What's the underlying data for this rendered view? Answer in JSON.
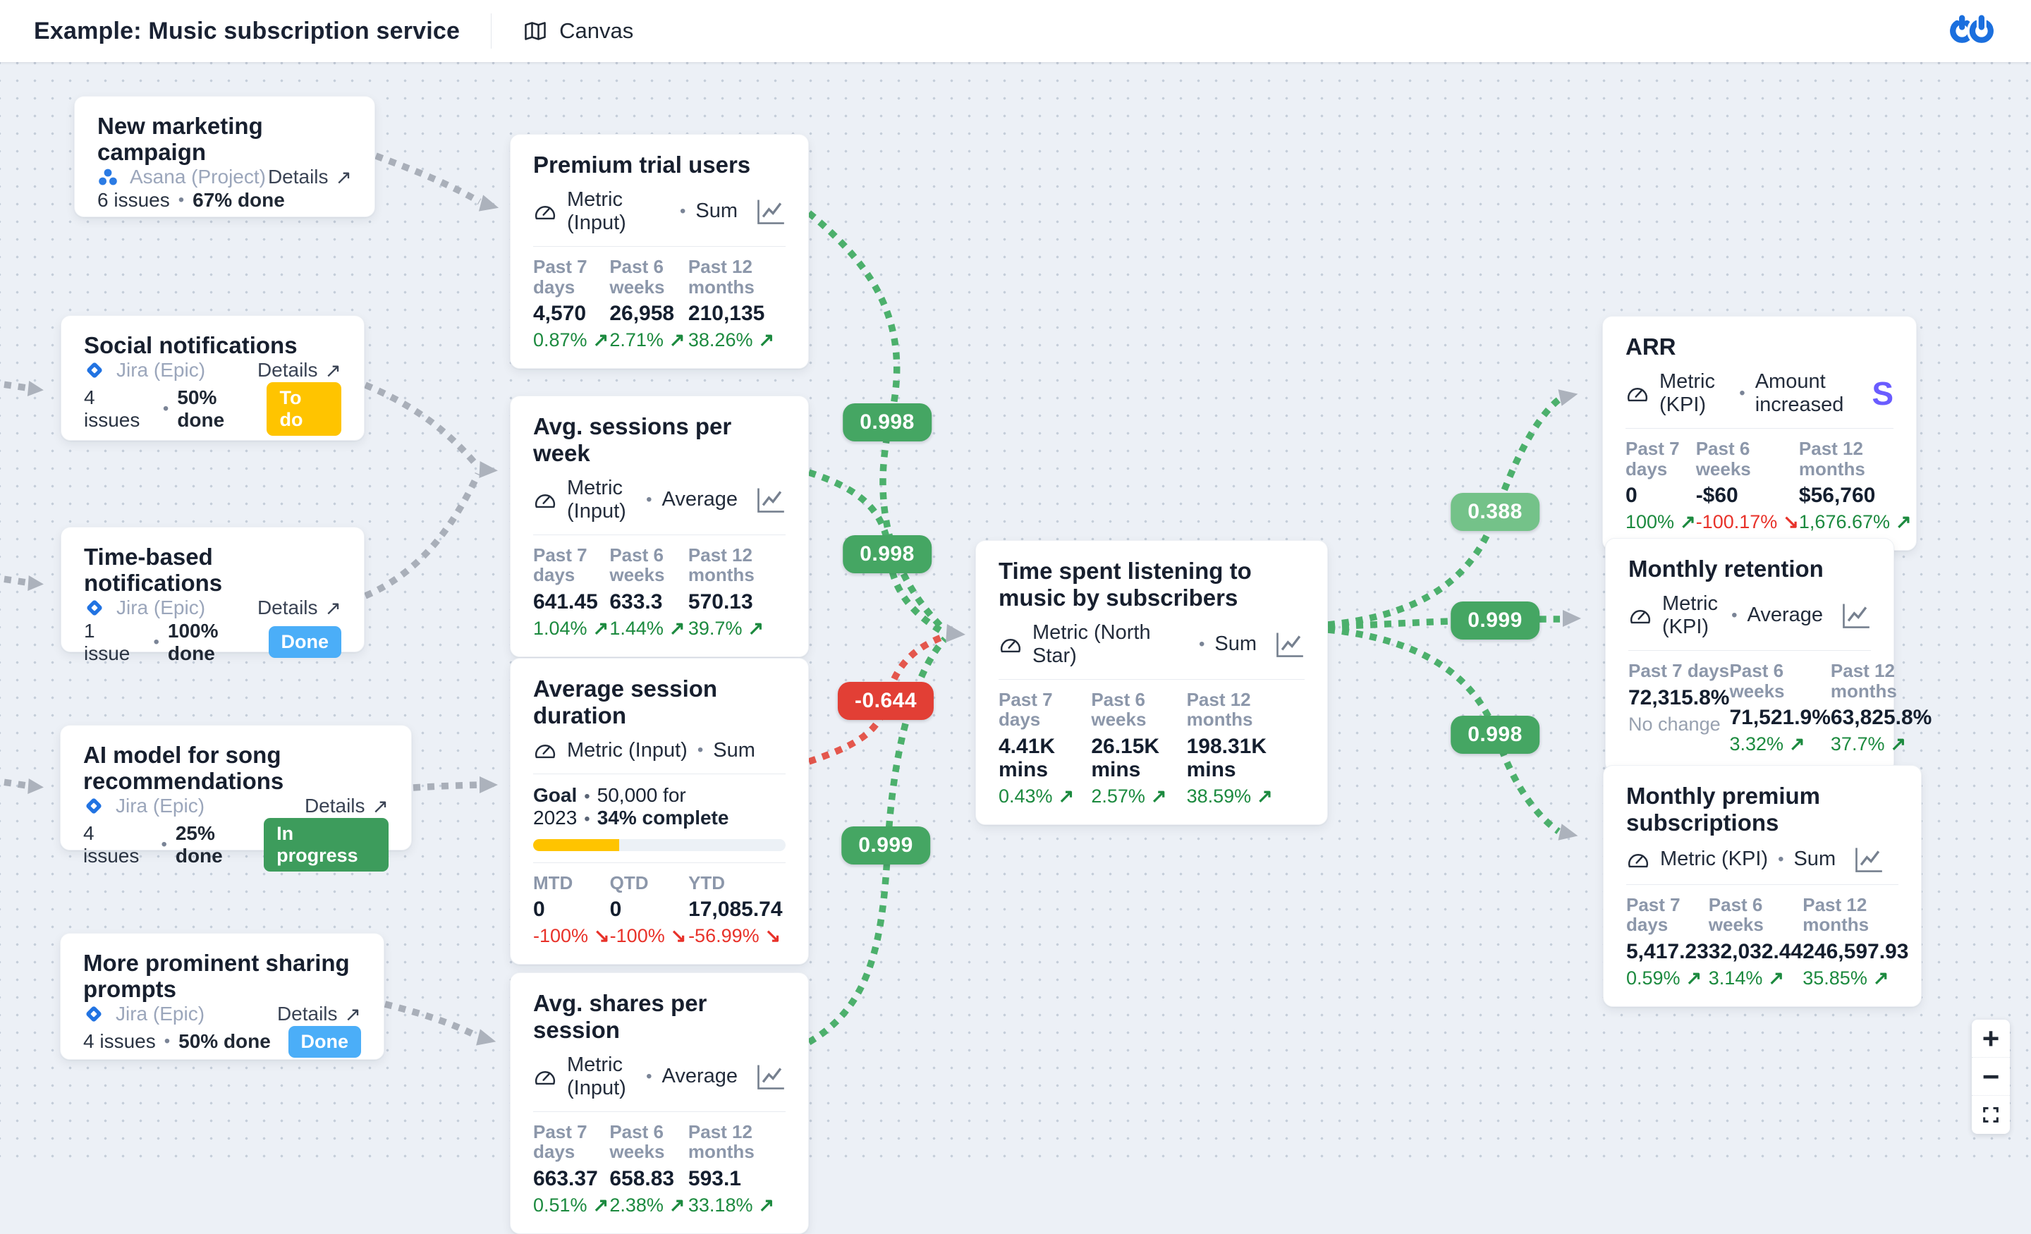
{
  "header": {
    "title": "Example: Music subscription service",
    "nav_label": "Canvas"
  },
  "icons": {
    "bullet": "•",
    "details_arrow": "↗",
    "trend_up": "↗",
    "trend_down": "↘",
    "plus": "+",
    "minus": "−"
  },
  "colors": {
    "green": "#45A663",
    "light_green": "#74C289",
    "red": "#E23F35",
    "yellow": "#FFC400",
    "blue": "#4BAEF8",
    "dark_green": "#3D9C5C",
    "gray_edge": "#A9AFB9",
    "accent_blue": "#1B6FDE",
    "stripe": "#6A5CFF"
  },
  "work_cards": [
    {
      "title": "New marketing campaign",
      "source": "Asana (Project)",
      "details": "Details",
      "issues": "6 issues",
      "done": "67% done",
      "progress": [
        {
          "color": "#FFC400",
          "pct": 67
        },
        {
          "color": "#EEF1F5",
          "pct": 33
        }
      ]
    },
    {
      "title": "Social notifications",
      "source": "Jira (Epic)",
      "details": "Details",
      "issues": "4 issues",
      "done": "50% done",
      "badge": {
        "label": "To do",
        "color": "#FFC400"
      },
      "progress": [
        {
          "color": "#FFC400",
          "pct": 50
        },
        {
          "color": "#FFE6A1",
          "pct": 25
        },
        {
          "color": "#C9D2DC",
          "pct": 25
        }
      ]
    },
    {
      "title": "Time-based notifications",
      "source": "Jira (Epic)",
      "details": "Details",
      "issues": "1 issue",
      "done": "100% done",
      "badge": {
        "label": "Done",
        "color": "#4BAEF8"
      },
      "progress": [
        {
          "color": "#4BAEF8",
          "pct": 100
        }
      ]
    },
    {
      "title": "AI model for song recommendations",
      "source": "Jira (Epic)",
      "details": "Details",
      "issues": "4 issues",
      "done": "25% done",
      "badge": {
        "label": "In progress",
        "color": "#3D9C5C"
      },
      "progress": [
        {
          "color": "#3D9C5C",
          "pct": 25
        },
        {
          "color": "#97D6AC",
          "pct": 25
        },
        {
          "color": "#C9D2DC",
          "pct": 50
        }
      ]
    },
    {
      "title": "More prominent sharing prompts",
      "source": "Jira (Epic)",
      "details": "Details",
      "issues": "4 issues",
      "done": "50% done",
      "badge": {
        "label": "Done",
        "color": "#4BAEF8"
      },
      "progress": [
        {
          "color": "#4BAEF8",
          "pct": 50
        },
        {
          "color": "#C9D2DC",
          "pct": 50
        }
      ]
    }
  ],
  "metric_cards": [
    {
      "title": "Premium trial users",
      "type": "Metric (Input)",
      "agg": "Sum",
      "stats": [
        {
          "label": "Past 7 days",
          "value": "4,570",
          "change": "0.87%"
        },
        {
          "label": "Past 6 weeks",
          "value": "26,958",
          "change": "2.71%"
        },
        {
          "label": "Past 12 months",
          "value": "210,135",
          "change": "38.26%"
        }
      ]
    },
    {
      "title": "Avg. sessions per week",
      "type": "Metric (Input)",
      "agg": "Average",
      "stats": [
        {
          "label": "Past 7 days",
          "value": "641.45",
          "change": "1.04%"
        },
        {
          "label": "Past 6 weeks",
          "value": "633.3",
          "change": "1.44%"
        },
        {
          "label": "Past 12 months",
          "value": "570.13",
          "change": "39.7%"
        }
      ]
    },
    {
      "title": "Average session duration",
      "type": "Metric (Input)",
      "agg": "Sum",
      "goal": {
        "label": "Goal",
        "target": "50,000 for 2023",
        "complete": "34% complete",
        "progress": [
          {
            "color": "#FFC400",
            "pct": 34
          },
          {
            "color": "#ECF1F6",
            "pct": 66
          }
        ]
      },
      "stats": [
        {
          "label": "MTD",
          "value": "0",
          "change": "-100%"
        },
        {
          "label": "QTD",
          "value": "0",
          "change": "-100%"
        },
        {
          "label": "YTD",
          "value": "17,085.74",
          "change": "-56.99%"
        }
      ]
    },
    {
      "title": "Avg. shares per session",
      "type": "Metric (Input)",
      "agg": "Average",
      "stats": [
        {
          "label": "Past 7 days",
          "value": "663.37",
          "change": "0.51%"
        },
        {
          "label": "Past 6 weeks",
          "value": "658.83",
          "change": "2.38%"
        },
        {
          "label": "Past 12 months",
          "value": "593.1",
          "change": "33.18%"
        }
      ]
    }
  ],
  "north_star": {
    "title": "Time spent listening to music by subscribers",
    "type": "Metric (North Star)",
    "agg": "Sum",
    "stats": [
      {
        "label": "Past 7 days",
        "value": "4.41K mins",
        "change": "0.43%"
      },
      {
        "label": "Past 6 weeks",
        "value": "26.15K mins",
        "change": "2.57%"
      },
      {
        "label": "Past 12 months",
        "value": "198.31K mins",
        "change": "38.59%"
      }
    ]
  },
  "kpi_cards": [
    {
      "title": "ARR",
      "type": "Metric (KPI)",
      "agg": "Amount increased",
      "logo": "S",
      "stats": [
        {
          "label": "Past 7 days",
          "value": "0",
          "change": "100%"
        },
        {
          "label": "Past 6 weeks",
          "value": "-$60",
          "change": "-100.17%"
        },
        {
          "label": "Past 12 months",
          "value": "$56,760",
          "change": "1,676.67%"
        }
      ]
    },
    {
      "title": "Monthly retention",
      "type": "Metric (KPI)",
      "agg": "Average",
      "stats": [
        {
          "label": "Past 7 days",
          "value": "72,315.8%",
          "change": "No change"
        },
        {
          "label": "Past 6 weeks",
          "value": "71,521.9%",
          "change": "3.32%"
        },
        {
          "label": "Past 12 months",
          "value": "63,825.8%",
          "change": "37.7%"
        }
      ]
    },
    {
      "title": "Monthly premium subscriptions",
      "type": "Metric (KPI)",
      "agg": "Sum",
      "stats": [
        {
          "label": "Past 7 days",
          "value": "5,417.23",
          "change": "0.59%"
        },
        {
          "label": "Past 6 weeks",
          "value": "32,032.44",
          "change": "3.14%"
        },
        {
          "label": "Past 12 months",
          "value": "246,597.93",
          "change": "35.85%"
        }
      ]
    }
  ],
  "correlations": [
    {
      "value": "0.998",
      "color": "#45A663"
    },
    {
      "value": "0.998",
      "color": "#45A663"
    },
    {
      "value": "-0.644",
      "color": "#E23F35"
    },
    {
      "value": "0.999",
      "color": "#45A663"
    },
    {
      "value": "0.388",
      "color": "#74C289"
    },
    {
      "value": "0.999",
      "color": "#45A663"
    },
    {
      "value": "0.998",
      "color": "#45A663"
    }
  ]
}
